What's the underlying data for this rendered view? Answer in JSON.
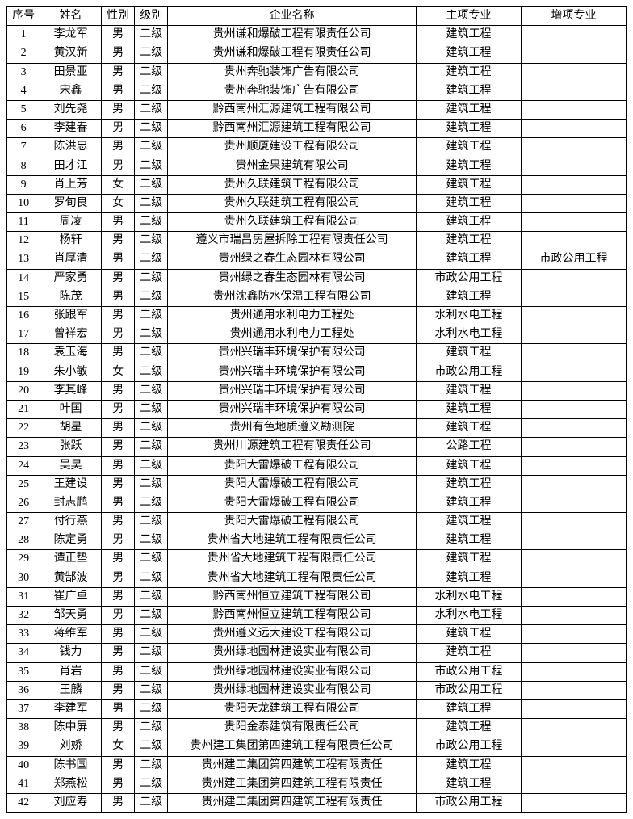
{
  "columns": [
    "序号",
    "姓名",
    "性别",
    "级别",
    "企业名称",
    "主项专业",
    "增项专业"
  ],
  "rows": [
    [
      "1",
      "李龙军",
      "男",
      "二级",
      "贵州谦和爆破工程有限责任公司",
      "建筑工程",
      ""
    ],
    [
      "2",
      "黄汉新",
      "男",
      "二级",
      "贵州谦和爆破工程有限责任公司",
      "建筑工程",
      ""
    ],
    [
      "3",
      "田景亚",
      "男",
      "二级",
      "贵州奔驰装饰广告有限公司",
      "建筑工程",
      ""
    ],
    [
      "4",
      "宋鑫",
      "男",
      "二级",
      "贵州奔驰装饰广告有限公司",
      "建筑工程",
      ""
    ],
    [
      "5",
      "刘先尧",
      "男",
      "二级",
      "黔西南州汇源建筑工程有限公司",
      "建筑工程",
      ""
    ],
    [
      "6",
      "李建春",
      "男",
      "二级",
      "黔西南州汇源建筑工程有限公司",
      "建筑工程",
      ""
    ],
    [
      "7",
      "陈洪忠",
      "男",
      "二级",
      "贵州顺厦建设工程有限公司",
      "建筑工程",
      ""
    ],
    [
      "8",
      "田才江",
      "男",
      "二级",
      "贵州金果建筑有限公司",
      "建筑工程",
      ""
    ],
    [
      "9",
      "肖上芳",
      "女",
      "二级",
      "贵州久联建筑工程有限公司",
      "建筑工程",
      ""
    ],
    [
      "10",
      "罗旬良",
      "女",
      "二级",
      "贵州久联建筑工程有限公司",
      "建筑工程",
      ""
    ],
    [
      "11",
      "周凌",
      "男",
      "二级",
      "贵州久联建筑工程有限公司",
      "建筑工程",
      ""
    ],
    [
      "12",
      "杨轩",
      "男",
      "二级",
      "遵义市瑞昌房屋拆除工程有限责任公司",
      "建筑工程",
      ""
    ],
    [
      "13",
      "肖厚清",
      "男",
      "二级",
      "贵州绿之春生态园林有限公司",
      "建筑工程",
      "市政公用工程"
    ],
    [
      "14",
      "严家勇",
      "男",
      "二级",
      "贵州绿之春生态园林有限公司",
      "市政公用工程",
      ""
    ],
    [
      "15",
      "陈茂",
      "男",
      "二级",
      "贵州沈鑫防水保温工程有限公司",
      "建筑工程",
      ""
    ],
    [
      "16",
      "张跟军",
      "男",
      "二级",
      "贵州通用水利电力工程处",
      "水利水电工程",
      ""
    ],
    [
      "17",
      "曾祥宏",
      "男",
      "二级",
      "贵州通用水利电力工程处",
      "水利水电工程",
      ""
    ],
    [
      "18",
      "袁玉海",
      "男",
      "二级",
      "贵州兴瑞丰环境保护有限公司",
      "建筑工程",
      ""
    ],
    [
      "19",
      "朱小敏",
      "女",
      "二级",
      "贵州兴瑞丰环境保护有限公司",
      "市政公用工程",
      ""
    ],
    [
      "20",
      "李其峰",
      "男",
      "二级",
      "贵州兴瑞丰环境保护有限公司",
      "建筑工程",
      ""
    ],
    [
      "21",
      "叶国",
      "男",
      "二级",
      "贵州兴瑞丰环境保护有限公司",
      "建筑工程",
      ""
    ],
    [
      "22",
      "胡星",
      "男",
      "二级",
      "贵州有色地质遵义勘测院",
      "建筑工程",
      ""
    ],
    [
      "23",
      "张跃",
      "男",
      "二级",
      "贵州川源建筑工程有限责任公司",
      "公路工程",
      ""
    ],
    [
      "24",
      "吴昊",
      "男",
      "二级",
      "贵阳大雷爆破工程有限公司",
      "建筑工程",
      ""
    ],
    [
      "25",
      "王建设",
      "男",
      "二级",
      "贵阳大雷爆破工程有限公司",
      "建筑工程",
      ""
    ],
    [
      "26",
      "封志鹏",
      "男",
      "二级",
      "贵阳大雷爆破工程有限公司",
      "建筑工程",
      ""
    ],
    [
      "27",
      "付行燕",
      "男",
      "二级",
      "贵阳大雷爆破工程有限公司",
      "建筑工程",
      ""
    ],
    [
      "28",
      "陈定勇",
      "男",
      "二级",
      "贵州省大地建筑工程有限责任公司",
      "建筑工程",
      ""
    ],
    [
      "29",
      "谭正垫",
      "男",
      "二级",
      "贵州省大地建筑工程有限责任公司",
      "建筑工程",
      ""
    ],
    [
      "30",
      "黄郜波",
      "男",
      "二级",
      "贵州省大地建筑工程有限责任公司",
      "建筑工程",
      ""
    ],
    [
      "31",
      "崔广卓",
      "男",
      "二级",
      "黔西南州恒立建筑工程有限公司",
      "水利水电工程",
      ""
    ],
    [
      "32",
      "邹天勇",
      "男",
      "二级",
      "黔西南州恒立建筑工程有限公司",
      "水利水电工程",
      ""
    ],
    [
      "33",
      "蒋维军",
      "男",
      "二级",
      "贵州遵义远大建设工程有限公司",
      "建筑工程",
      ""
    ],
    [
      "34",
      "钱力",
      "男",
      "二级",
      "贵州绿地园林建设实业有限公司",
      "建筑工程",
      ""
    ],
    [
      "35",
      "肖岩",
      "男",
      "二级",
      "贵州绿地园林建设实业有限公司",
      "市政公用工程",
      ""
    ],
    [
      "36",
      "王麟",
      "男",
      "二级",
      "贵州绿地园林建设实业有限公司",
      "市政公用工程",
      ""
    ],
    [
      "37",
      "李建军",
      "男",
      "二级",
      "贵阳天龙建筑工程有限公司",
      "建筑工程",
      ""
    ],
    [
      "38",
      "陈中屏",
      "男",
      "二级",
      "贵阳金泰建筑有限责任公司",
      "建筑工程",
      ""
    ],
    [
      "39",
      "刘娇",
      "女",
      "二级",
      "贵州建工集团第四建筑工程有限责任公司",
      "市政公用工程",
      ""
    ],
    [
      "40",
      "陈书国",
      "男",
      "二级",
      "贵州建工集团第四建筑工程有限责任",
      "建筑工程",
      ""
    ],
    [
      "41",
      "郑燕松",
      "男",
      "二级",
      "贵州建工集团第四建筑工程有限责任",
      "建筑工程",
      ""
    ],
    [
      "42",
      "刘应寿",
      "男",
      "二级",
      "贵州建工集团第四建筑工程有限责任",
      "市政公用工程",
      ""
    ]
  ]
}
